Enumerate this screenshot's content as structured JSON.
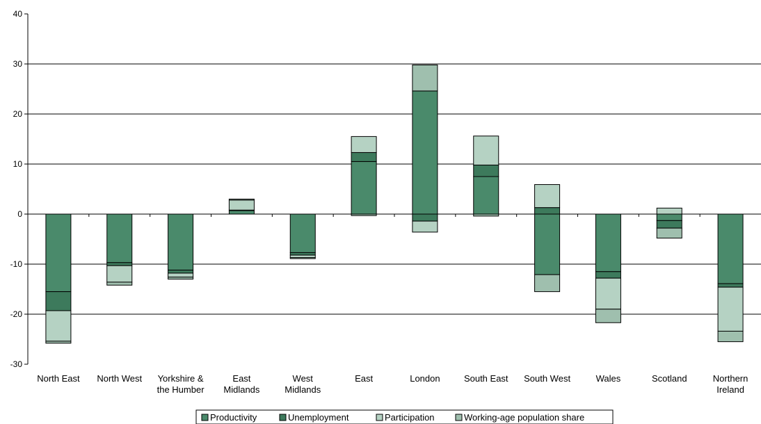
{
  "chart_data": {
    "type": "bar",
    "stacked": true,
    "categories": [
      "North East",
      "North West",
      "Yorkshire & the Humber",
      "East Midlands",
      "West Midlands",
      "East",
      "London",
      "South East",
      "South West",
      "Wales",
      "Scotland",
      "Northern Ireland"
    ],
    "category_lines": [
      [
        "North East"
      ],
      [
        "North West"
      ],
      [
        "Yorkshire &",
        "the Humber"
      ],
      [
        "East",
        "Midlands"
      ],
      [
        "West",
        "Midlands"
      ],
      [
        "East"
      ],
      [
        "London"
      ],
      [
        "South East"
      ],
      [
        "South West"
      ],
      [
        "Wales"
      ],
      [
        "Scotland"
      ],
      [
        "Northern",
        "Ireland"
      ]
    ],
    "series": [
      {
        "name": "Productivity",
        "color": "#4a8a6b",
        "values": [
          -15.5,
          -9.7,
          -11.2,
          0.7,
          -7.7,
          10.5,
          24.6,
          7.5,
          -12.1,
          -11.5,
          -1.3,
          -13.9
        ]
      },
      {
        "name": "Unemployment",
        "color": "#3d7a5c",
        "values": [
          -3.8,
          -0.6,
          -0.6,
          0.1,
          -0.5,
          1.8,
          -1.4,
          2.3,
          1.3,
          -1.3,
          -1.5,
          -0.7
        ]
      },
      {
        "name": "Participation",
        "color": "#b5d2c3",
        "values": [
          -6.1,
          -3.3,
          -0.8,
          2.0,
          -0.5,
          3.2,
          -2.2,
          5.8,
          4.6,
          -6.2,
          1.2,
          -8.8
        ]
      },
      {
        "name": "Working-age population share",
        "color": "#9fbfae",
        "values": [
          -0.4,
          -0.6,
          -0.4,
          0.2,
          -0.2,
          -0.3,
          5.2,
          -0.4,
          -3.4,
          -2.7,
          -2.0,
          -2.1
        ]
      }
    ],
    "yticks": [
      -30,
      -20,
      -10,
      0,
      10,
      20,
      30,
      40
    ],
    "ylim": [
      -30,
      40
    ],
    "gridlines": [
      -20,
      -10,
      10,
      20,
      30
    ],
    "grid": true,
    "legend_position": "bottom"
  }
}
